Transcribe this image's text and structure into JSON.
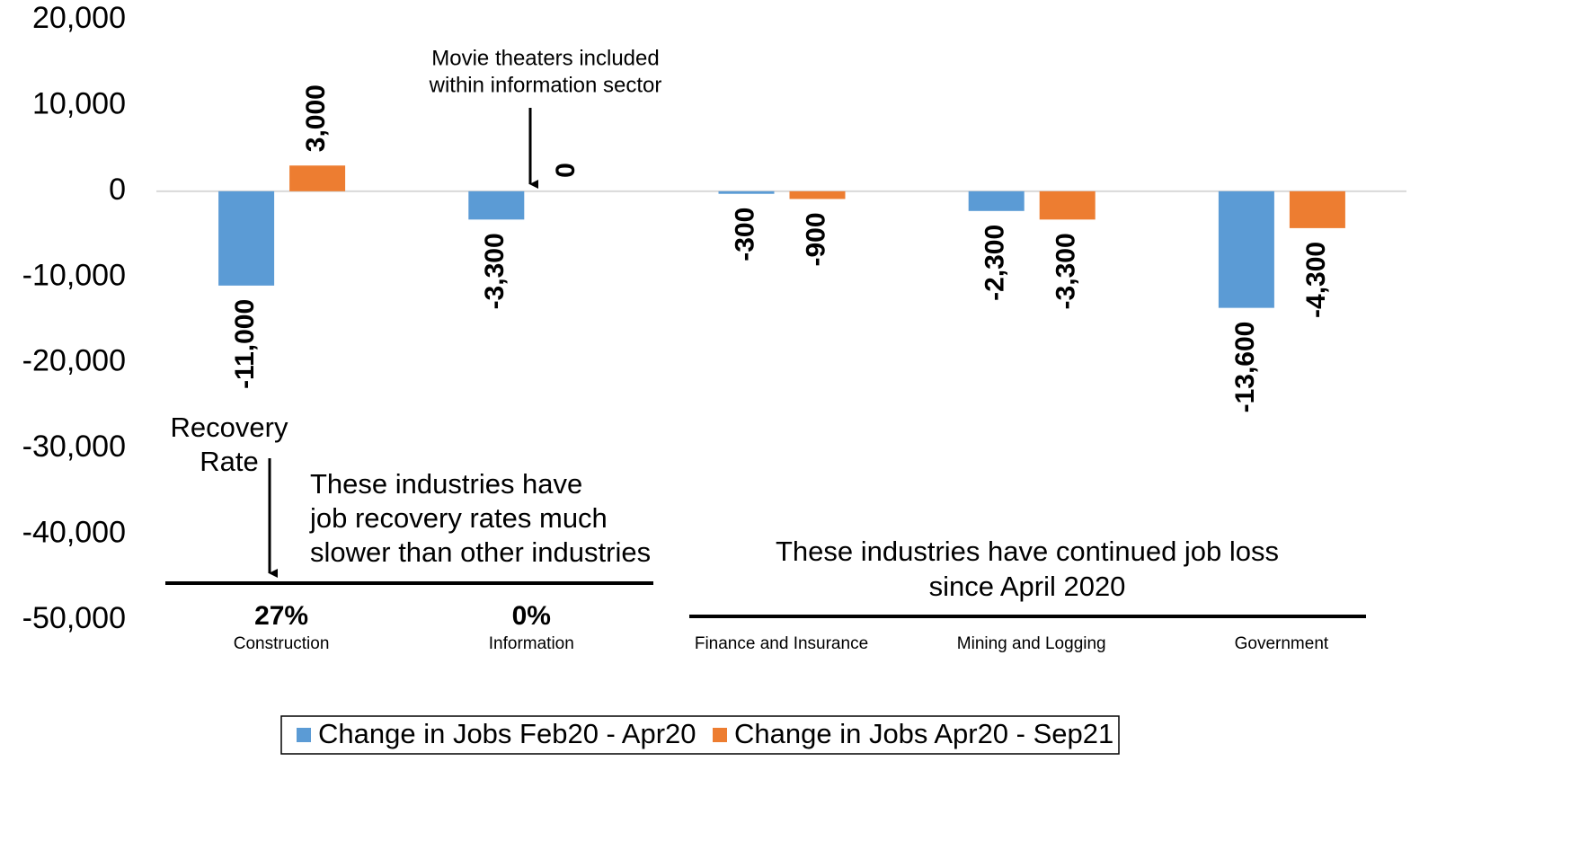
{
  "chart_data": {
    "type": "bar",
    "categories": [
      "Construction",
      "Information",
      "Finance and Insurance",
      "Mining and Logging",
      "Government"
    ],
    "series": [
      {
        "name": "Change in Jobs Feb20 - Apr20",
        "color": "#5b9bd5",
        "values": [
          -11000,
          -3300,
          -300,
          -2300,
          -13600
        ],
        "value_labels": [
          "-11,000",
          "-3,300",
          "-300",
          "-2,300",
          "-13,600"
        ]
      },
      {
        "name": "Change in Jobs Apr20 - Sep21",
        "color": "#ed7d31",
        "values": [
          3000,
          0,
          -900,
          -3300,
          -4300
        ],
        "value_labels": [
          "3,000",
          "0",
          "-900",
          "-3,300",
          "-4,300"
        ]
      }
    ],
    "ylim": [
      -50000,
      20000
    ],
    "yticks": [
      {
        "value": 20000,
        "label": "20,000"
      },
      {
        "value": 10000,
        "label": "10,000"
      },
      0,
      {
        "value": -10000,
        "label": "-10,000"
      },
      {
        "value": -20000,
        "label": "-20,000"
      },
      {
        "value": -30000,
        "label": "-30,000"
      },
      {
        "value": -40000,
        "label": "-40,000"
      },
      {
        "value": -50000,
        "label": "-50,000"
      }
    ],
    "recovery_rates": {
      "values": [
        27,
        0
      ],
      "labels": [
        "27%",
        "0%"
      ]
    },
    "annotations": {
      "movie": [
        "Movie theaters included",
        "within information sector"
      ],
      "recovery": [
        "Recovery",
        "Rate"
      ],
      "slow": [
        "These industries have",
        "job recovery rates much",
        "slower than other industries"
      ],
      "loss": [
        "These industries have continued job loss",
        "since April 2020"
      ]
    },
    "legend": "bottom"
  }
}
